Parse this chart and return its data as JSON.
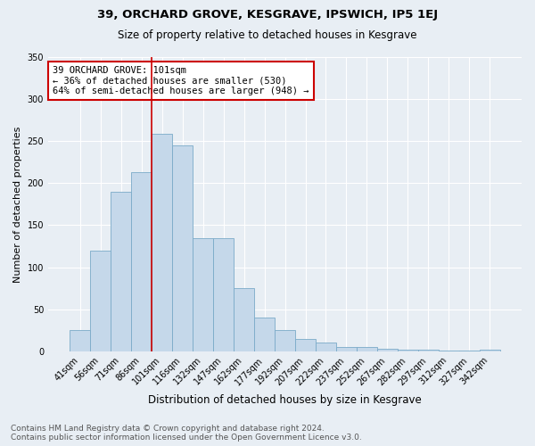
{
  "title": "39, ORCHARD GROVE, KESGRAVE, IPSWICH, IP5 1EJ",
  "subtitle": "Size of property relative to detached houses in Kesgrave",
  "xlabel": "Distribution of detached houses by size in Kesgrave",
  "ylabel": "Number of detached properties",
  "categories": [
    "41sqm",
    "56sqm",
    "71sqm",
    "86sqm",
    "101sqm",
    "116sqm",
    "132sqm",
    "147sqm",
    "162sqm",
    "177sqm",
    "192sqm",
    "207sqm",
    "222sqm",
    "237sqm",
    "252sqm",
    "267sqm",
    "282sqm",
    "297sqm",
    "312sqm",
    "327sqm",
    "342sqm"
  ],
  "values": [
    25,
    120,
    190,
    213,
    259,
    245,
    135,
    135,
    75,
    40,
    25,
    15,
    10,
    5,
    5,
    3,
    2,
    2,
    1,
    1,
    2
  ],
  "highlight_index": 4,
  "bar_color": "#c5d8ea",
  "bar_edge_color": "#7aaac8",
  "annotation_box_text": "39 ORCHARD GROVE: 101sqm\n← 36% of detached houses are smaller (530)\n64% of semi-detached houses are larger (948) →",
  "annotation_box_color": "#ffffff",
  "annotation_box_edge_color": "#cc0000",
  "property_line_color": "#cc0000",
  "ylim": [
    0,
    350
  ],
  "yticks": [
    0,
    50,
    100,
    150,
    200,
    250,
    300,
    350
  ],
  "footer_line1": "Contains HM Land Registry data © Crown copyright and database right 2024.",
  "footer_line2": "Contains public sector information licensed under the Open Government Licence v3.0.",
  "bg_color": "#e8eef4",
  "grid_color": "#ffffff",
  "title_fontsize": 9.5,
  "subtitle_fontsize": 8.5,
  "xlabel_fontsize": 8.5,
  "ylabel_fontsize": 8,
  "tick_fontsize": 7,
  "annotation_fontsize": 7.5,
  "footer_fontsize": 6.5
}
